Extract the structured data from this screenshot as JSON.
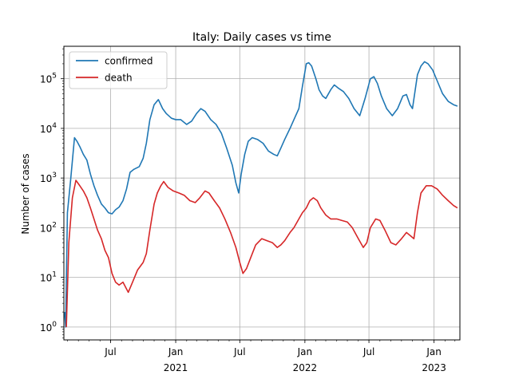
{
  "chart_data": {
    "type": "line",
    "title": "Italy: Daily  cases vs time",
    "xlabel": "",
    "ylabel": "Number of cases",
    "yscale": "log",
    "ylim": [
      0.55,
      450000
    ],
    "xlim": [
      "2020-02-20",
      "2023-03-15"
    ],
    "grid": true,
    "legend": "top-left",
    "x_ticks": [
      {
        "date": "2020-07-01",
        "label": "Jul",
        "sub": ""
      },
      {
        "date": "2021-01-01",
        "label": "Jan",
        "sub": "2021"
      },
      {
        "date": "2021-07-01",
        "label": "Jul",
        "sub": ""
      },
      {
        "date": "2022-01-01",
        "label": "Jan",
        "sub": "2022"
      },
      {
        "date": "2022-07-01",
        "label": "Jul",
        "sub": ""
      },
      {
        "date": "2023-01-01",
        "label": "Jan",
        "sub": "2023"
      }
    ],
    "y_ticks": [
      {
        "value": 1,
        "base": "10",
        "exp": "0"
      },
      {
        "value": 10,
        "base": "10",
        "exp": "1"
      },
      {
        "value": 100,
        "base": "10",
        "exp": "2"
      },
      {
        "value": 1000,
        "base": "10",
        "exp": "3"
      },
      {
        "value": 10000,
        "base": "10",
        "exp": "4"
      },
      {
        "value": 100000,
        "base": "10",
        "exp": "5"
      }
    ],
    "series": [
      {
        "name": "confirmed",
        "color": "#1f77b4",
        "points": [
          [
            "2020-02-22",
            2
          ],
          [
            "2020-02-25",
            1
          ],
          [
            "2020-03-01",
            200
          ],
          [
            "2020-03-10",
            900
          ],
          [
            "2020-03-21",
            6500
          ],
          [
            "2020-03-28",
            5500
          ],
          [
            "2020-04-05",
            4300
          ],
          [
            "2020-04-15",
            3000
          ],
          [
            "2020-04-25",
            2300
          ],
          [
            "2020-05-05",
            1200
          ],
          [
            "2020-05-15",
            700
          ],
          [
            "2020-05-25",
            450
          ],
          [
            "2020-06-05",
            300
          ],
          [
            "2020-06-15",
            250
          ],
          [
            "2020-06-25",
            200
          ],
          [
            "2020-07-05",
            190
          ],
          [
            "2020-07-15",
            230
          ],
          [
            "2020-07-25",
            260
          ],
          [
            "2020-08-05",
            350
          ],
          [
            "2020-08-15",
            600
          ],
          [
            "2020-08-25",
            1300
          ],
          [
            "2020-09-05",
            1500
          ],
          [
            "2020-09-20",
            1700
          ],
          [
            "2020-10-01",
            2500
          ],
          [
            "2020-10-10",
            5000
          ],
          [
            "2020-10-20",
            15000
          ],
          [
            "2020-11-01",
            30000
          ],
          [
            "2020-11-13",
            38000
          ],
          [
            "2020-11-25",
            25000
          ],
          [
            "2020-12-05",
            20000
          ],
          [
            "2020-12-20",
            16000
          ],
          [
            "2021-01-01",
            15000
          ],
          [
            "2021-01-15",
            15000
          ],
          [
            "2021-02-01",
            12000
          ],
          [
            "2021-02-15",
            14000
          ],
          [
            "2021-03-01",
            20000
          ],
          [
            "2021-03-13",
            25000
          ],
          [
            "2021-03-25",
            22000
          ],
          [
            "2021-04-10",
            15000
          ],
          [
            "2021-04-25",
            12000
          ],
          [
            "2021-05-10",
            8000
          ],
          [
            "2021-05-25",
            4000
          ],
          [
            "2021-06-10",
            1800
          ],
          [
            "2021-06-20",
            800
          ],
          [
            "2021-06-28",
            500
          ],
          [
            "2021-07-05",
            1200
          ],
          [
            "2021-07-15",
            3000
          ],
          [
            "2021-07-25",
            5500
          ],
          [
            "2021-08-05",
            6500
          ],
          [
            "2021-08-20",
            6000
          ],
          [
            "2021-09-05",
            5000
          ],
          [
            "2021-09-20",
            3500
          ],
          [
            "2021-10-05",
            3000
          ],
          [
            "2021-10-15",
            2800
          ],
          [
            "2021-10-25",
            4000
          ],
          [
            "2021-11-05",
            6000
          ],
          [
            "2021-11-20",
            10000
          ],
          [
            "2021-12-01",
            15000
          ],
          [
            "2021-12-15",
            25000
          ],
          [
            "2021-12-25",
            70000
          ],
          [
            "2022-01-05",
            200000
          ],
          [
            "2022-01-12",
            210000
          ],
          [
            "2022-01-20",
            180000
          ],
          [
            "2022-02-01",
            100000
          ],
          [
            "2022-02-10",
            60000
          ],
          [
            "2022-02-20",
            45000
          ],
          [
            "2022-03-01",
            40000
          ],
          [
            "2022-03-15",
            60000
          ],
          [
            "2022-03-25",
            75000
          ],
          [
            "2022-04-05",
            65000
          ],
          [
            "2022-04-20",
            55000
          ],
          [
            "2022-05-05",
            40000
          ],
          [
            "2022-05-20",
            25000
          ],
          [
            "2022-06-05",
            18000
          ],
          [
            "2022-06-20",
            40000
          ],
          [
            "2022-07-05",
            100000
          ],
          [
            "2022-07-15",
            110000
          ],
          [
            "2022-07-25",
            80000
          ],
          [
            "2022-08-05",
            45000
          ],
          [
            "2022-08-20",
            25000
          ],
          [
            "2022-09-05",
            18000
          ],
          [
            "2022-09-20",
            25000
          ],
          [
            "2022-10-05",
            45000
          ],
          [
            "2022-10-15",
            48000
          ],
          [
            "2022-10-25",
            30000
          ],
          [
            "2022-11-01",
            25000
          ],
          [
            "2022-11-15",
            120000
          ],
          [
            "2022-11-25",
            180000
          ],
          [
            "2022-12-05",
            220000
          ],
          [
            "2022-12-15",
            200000
          ],
          [
            "2022-12-28",
            150000
          ],
          [
            "2023-01-10",
            90000
          ],
          [
            "2023-01-25",
            50000
          ],
          [
            "2023-02-10",
            35000
          ],
          [
            "2023-02-25",
            30000
          ],
          [
            "2023-03-08",
            28000
          ]
        ]
      },
      {
        "name": "death",
        "color": "#d62728",
        "points": [
          [
            "2020-02-27",
            1
          ],
          [
            "2020-03-05",
            50
          ],
          [
            "2020-03-15",
            400
          ],
          [
            "2020-03-25",
            900
          ],
          [
            "2020-04-05",
            700
          ],
          [
            "2020-04-15",
            550
          ],
          [
            "2020-04-25",
            400
          ],
          [
            "2020-05-05",
            250
          ],
          [
            "2020-05-15",
            150
          ],
          [
            "2020-05-25",
            90
          ],
          [
            "2020-06-05",
            60
          ],
          [
            "2020-06-15",
            35
          ],
          [
            "2020-06-25",
            25
          ],
          [
            "2020-07-05",
            12
          ],
          [
            "2020-07-15",
            8
          ],
          [
            "2020-07-25",
            7
          ],
          [
            "2020-08-05",
            8
          ],
          [
            "2020-08-20",
            5
          ],
          [
            "2020-09-01",
            8
          ],
          [
            "2020-09-15",
            14
          ],
          [
            "2020-10-01",
            20
          ],
          [
            "2020-10-10",
            30
          ],
          [
            "2020-10-20",
            90
          ],
          [
            "2020-11-01",
            300
          ],
          [
            "2020-11-10",
            500
          ],
          [
            "2020-11-20",
            700
          ],
          [
            "2020-11-28",
            850
          ],
          [
            "2020-12-10",
            650
          ],
          [
            "2020-12-25",
            550
          ],
          [
            "2021-01-10",
            500
          ],
          [
            "2021-01-25",
            450
          ],
          [
            "2021-02-10",
            350
          ],
          [
            "2021-02-25",
            320
          ],
          [
            "2021-03-10",
            400
          ],
          [
            "2021-03-25",
            550
          ],
          [
            "2021-04-05",
            500
          ],
          [
            "2021-04-20",
            350
          ],
          [
            "2021-05-05",
            250
          ],
          [
            "2021-05-20",
            150
          ],
          [
            "2021-06-05",
            80
          ],
          [
            "2021-06-20",
            40
          ],
          [
            "2021-07-01",
            20
          ],
          [
            "2021-07-10",
            12
          ],
          [
            "2021-07-20",
            15
          ],
          [
            "2021-08-01",
            25
          ],
          [
            "2021-08-15",
            45
          ],
          [
            "2021-09-01",
            60
          ],
          [
            "2021-09-15",
            55
          ],
          [
            "2021-10-01",
            50
          ],
          [
            "2021-10-15",
            40
          ],
          [
            "2021-10-25",
            45
          ],
          [
            "2021-11-05",
            55
          ],
          [
            "2021-11-20",
            80
          ],
          [
            "2021-12-01",
            100
          ],
          [
            "2021-12-15",
            150
          ],
          [
            "2021-12-25",
            200
          ],
          [
            "2022-01-05",
            250
          ],
          [
            "2022-01-15",
            350
          ],
          [
            "2022-01-25",
            400
          ],
          [
            "2022-02-05",
            350
          ],
          [
            "2022-02-15",
            250
          ],
          [
            "2022-03-01",
            180
          ],
          [
            "2022-03-15",
            150
          ],
          [
            "2022-04-01",
            150
          ],
          [
            "2022-04-15",
            140
          ],
          [
            "2022-05-01",
            130
          ],
          [
            "2022-05-15",
            100
          ],
          [
            "2022-06-01",
            60
          ],
          [
            "2022-06-15",
            40
          ],
          [
            "2022-06-25",
            50
          ],
          [
            "2022-07-05",
            100
          ],
          [
            "2022-07-20",
            150
          ],
          [
            "2022-08-01",
            140
          ],
          [
            "2022-08-15",
            90
          ],
          [
            "2022-09-01",
            50
          ],
          [
            "2022-09-15",
            45
          ],
          [
            "2022-10-01",
            60
          ],
          [
            "2022-10-15",
            80
          ],
          [
            "2022-10-25",
            70
          ],
          [
            "2022-11-05",
            60
          ],
          [
            "2022-11-15",
            200
          ],
          [
            "2022-11-25",
            500
          ],
          [
            "2022-12-10",
            700
          ],
          [
            "2022-12-25",
            700
          ],
          [
            "2023-01-10",
            600
          ],
          [
            "2023-01-25",
            450
          ],
          [
            "2023-02-10",
            350
          ],
          [
            "2023-02-25",
            280
          ],
          [
            "2023-03-08",
            250
          ]
        ]
      }
    ]
  }
}
